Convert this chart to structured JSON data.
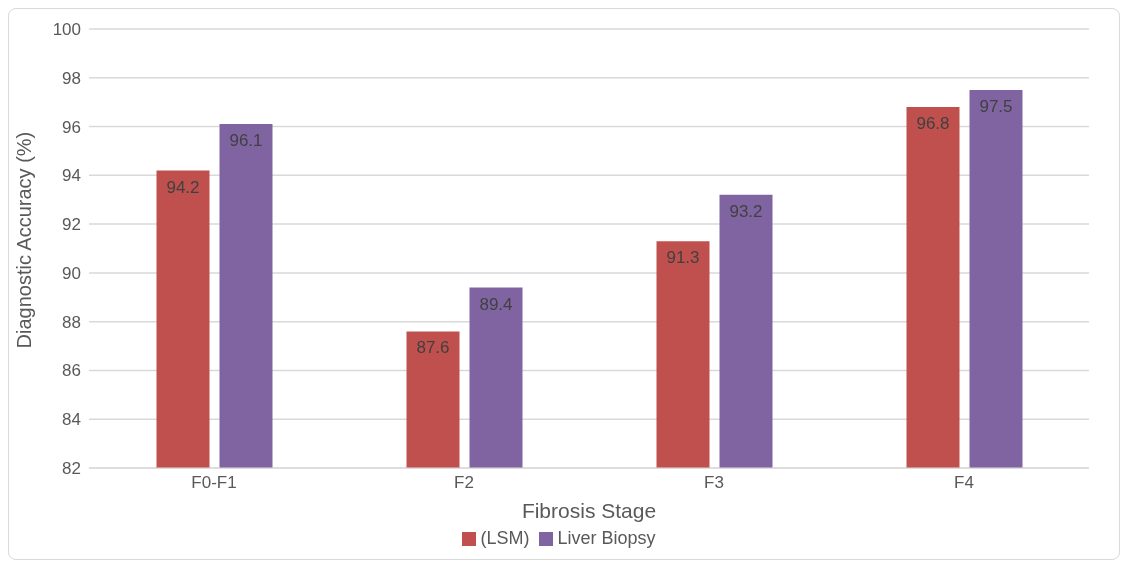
{
  "chart_data": {
    "type": "bar",
    "xlabel": "Fibrosis Stage",
    "ylabel": "Diagnostic Accuracy (%)",
    "categories": [
      "F0-F1",
      "F2",
      "F3",
      "F4"
    ],
    "series": [
      {
        "name": "(LSM)",
        "color": "#c0504d",
        "values": [
          94.2,
          87.6,
          91.3,
          96.8
        ]
      },
      {
        "name": "Liver Biopsy",
        "color": "#8064a2",
        "values": [
          96.1,
          89.4,
          93.2,
          97.5
        ]
      }
    ],
    "ylim": [
      82,
      100
    ],
    "yticks": [
      82,
      84,
      86,
      88,
      90,
      92,
      94,
      96,
      98,
      100
    ],
    "grid": "y",
    "legend": "bottom",
    "data_labels": true
  }
}
